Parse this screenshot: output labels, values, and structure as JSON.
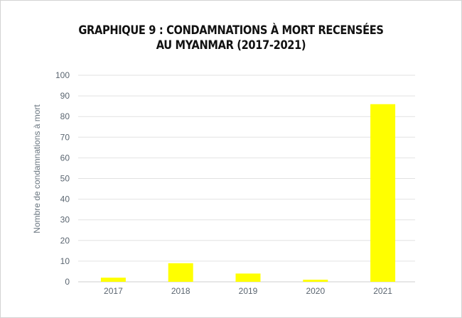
{
  "chart_data": {
    "type": "bar",
    "title_lines": [
      "GRAPHIQUE 9 : CONDAMNATIONS À MORT RECENSÉES",
      "AU MYANMAR (2017-2021)"
    ],
    "ylabel": "Nombre de condamnations à mort",
    "xlabel": "",
    "categories": [
      "2017",
      "2018",
      "2019",
      "2020",
      "2021"
    ],
    "values": [
      2,
      9,
      4,
      1,
      86
    ],
    "ylim": [
      0,
      100
    ],
    "yticks": [
      "0",
      "10",
      "20",
      "30",
      "40",
      "50",
      "60",
      "70",
      "80",
      "90",
      "100"
    ],
    "grid": true,
    "bar_color": "#ffff00",
    "grid_color": "#e2e2e2",
    "legend": "none"
  }
}
